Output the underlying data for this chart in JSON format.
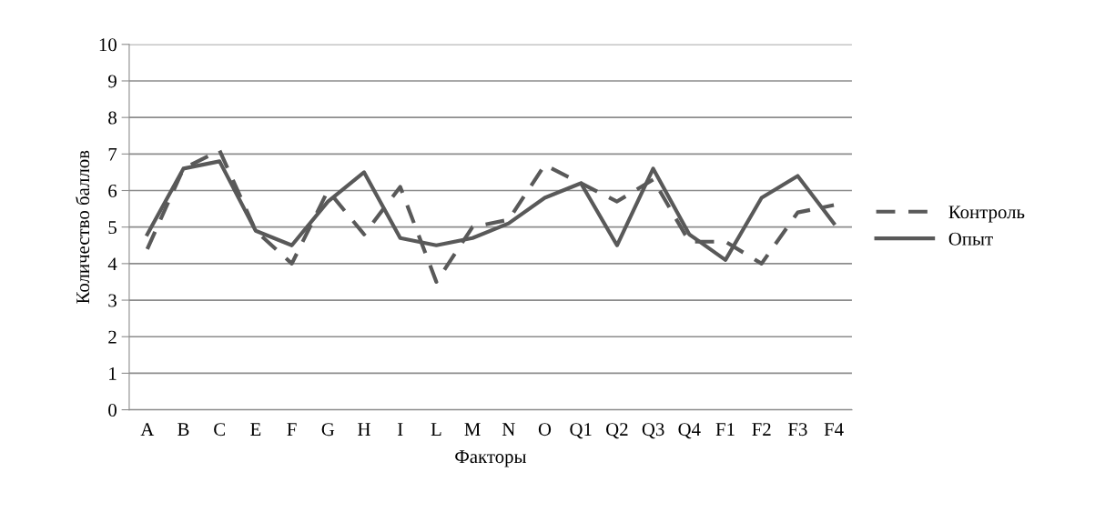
{
  "chart_data": {
    "type": "line",
    "xlabel": "Факторы",
    "ylabel": "Количество баллов",
    "categories": [
      "A",
      "B",
      "C",
      "E",
      "F",
      "G",
      "H",
      "I",
      "L",
      "M",
      "N",
      "O",
      "Q1",
      "Q2",
      "Q3",
      "Q4",
      "F1",
      "F2",
      "F3",
      "F4"
    ],
    "series": [
      {
        "name": "Контроль",
        "color": "#595959",
        "line_style": "dashed",
        "values": [
          4.4,
          6.6,
          7.1,
          4.9,
          4.0,
          6.0,
          4.8,
          6.1,
          3.5,
          5.0,
          5.2,
          6.7,
          6.2,
          5.7,
          6.3,
          4.6,
          4.6,
          4.0,
          5.4,
          5.6
        ]
      },
      {
        "name": "Опыт",
        "color": "#595959",
        "line_style": "solid",
        "values": [
          4.8,
          6.6,
          6.8,
          4.9,
          4.5,
          5.7,
          6.5,
          4.7,
          4.5,
          4.7,
          5.1,
          5.8,
          6.2,
          4.5,
          6.6,
          4.8,
          4.1,
          5.8,
          6.4,
          5.1
        ]
      }
    ],
    "ylim": [
      0,
      10
    ],
    "yticks": [
      0,
      1,
      2,
      3,
      4,
      5,
      6,
      7,
      8,
      9,
      10
    ],
    "grid": "y",
    "legend": "right",
    "marker": "none"
  }
}
